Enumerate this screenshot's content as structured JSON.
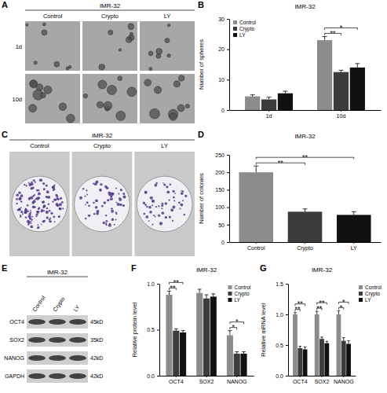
{
  "image_panels": [
    {
      "panel": "A",
      "title": "IMR-32",
      "columns": [
        "Control",
        "Crypto",
        "LY"
      ],
      "rows": [
        "1d",
        "10d"
      ]
    },
    {
      "panel": "C",
      "title": "IMR-32",
      "columns": [
        "Control",
        "Crypto",
        "LY"
      ]
    },
    {
      "panel": "E",
      "title": "IMR-32",
      "columns": [
        "Control",
        "Crypto",
        "LY"
      ],
      "rows": [
        "OCT4",
        "SOX2",
        "NANOG",
        "GAPDH"
      ],
      "row_sizes": [
        "45kD",
        "35kD",
        "42kD",
        "42kD"
      ]
    }
  ],
  "chart_data": [
    {
      "type": "bar",
      "panel": "B",
      "title": "IMR-32",
      "y_label": "Number of spheres",
      "categories": [
        "1d",
        "10d"
      ],
      "series": [
        {
          "name": "Control",
          "color": "#8c8c8c",
          "values": [
            4.5,
            23
          ],
          "errors": [
            0.5,
            1.2
          ]
        },
        {
          "name": "Crypto",
          "color": "#3c3c3c",
          "values": [
            3.5,
            12.5
          ],
          "errors": [
            0.7,
            0.6
          ]
        },
        {
          "name": "LY",
          "color": "#111111",
          "values": [
            5.5,
            14
          ],
          "errors": [
            0.7,
            1.3
          ]
        }
      ],
      "ylim": [
        0,
        30
      ],
      "yticks": [
        0,
        10,
        20,
        30
      ],
      "legend": "top-left",
      "annotations": [
        {
          "text": "**",
          "category": "10d",
          "between": [
            "Control",
            "Crypto"
          ]
        },
        {
          "text": "*",
          "category": "10d",
          "between": [
            "Control",
            "LY"
          ]
        }
      ]
    },
    {
      "type": "bar",
      "panel": "D",
      "title": "IMR-32",
      "y_label": "Number of colonies",
      "categories": [
        "Control",
        "Crypto",
        "LY"
      ],
      "values": [
        200,
        87,
        78
      ],
      "errors": [
        18,
        8,
        9
      ],
      "colors": [
        "#8c8c8c",
        "#3c3c3c",
        "#111111"
      ],
      "ylim": [
        0,
        250
      ],
      "yticks": [
        0,
        50,
        100,
        150,
        200,
        250
      ],
      "annotations": [
        {
          "text": "**",
          "between": [
            "Control",
            "Crypto"
          ]
        },
        {
          "text": "**",
          "between": [
            "Control",
            "LY"
          ]
        }
      ]
    },
    {
      "type": "bar",
      "panel": "F",
      "title": "IMR-32",
      "y_label": "Relative protein level",
      "categories": [
        "OCT4",
        "SOX2",
        "NANOG"
      ],
      "series": [
        {
          "name": "Control",
          "color": "#8c8c8c",
          "values": [
            0.88,
            0.9,
            0.44
          ],
          "errors": [
            0.04,
            0.04,
            0.05
          ]
        },
        {
          "name": "Crypto",
          "color": "#3c3c3c",
          "values": [
            0.49,
            0.84,
            0.24
          ],
          "errors": [
            0.02,
            0.04,
            0.02
          ]
        },
        {
          "name": "LY",
          "color": "#111111",
          "values": [
            0.47,
            0.86,
            0.24
          ],
          "errors": [
            0.02,
            0.03,
            0.02
          ]
        }
      ],
      "ylim": [
        0,
        1
      ],
      "yticks": [
        {
          "value": 0,
          "label": "0.0"
        },
        0.5,
        {
          "value": 1,
          "label": "1.0"
        }
      ],
      "legend": "top-right",
      "annotations": [
        {
          "text": "**",
          "category": "OCT4",
          "between": [
            "Control",
            "Crypto"
          ]
        },
        {
          "text": "**",
          "category": "OCT4",
          "between": [
            "Control",
            "LY"
          ]
        },
        {
          "text": "*",
          "category": "NANOG",
          "between": [
            "Control",
            "Crypto"
          ]
        },
        {
          "text": "*",
          "category": "NANOG",
          "between": [
            "Control",
            "LY"
          ]
        }
      ]
    },
    {
      "type": "bar",
      "panel": "G",
      "title": "IMR-32",
      "y_label": "Relative mRNA level",
      "categories": [
        "OCT4",
        "SOX2",
        "NANOG"
      ],
      "series": [
        {
          "name": "Control",
          "color": "#8c8c8c",
          "values": [
            1.0,
            1.0,
            1.0
          ],
          "errors": [
            0.03,
            0.05,
            0.06
          ]
        },
        {
          "name": "Crypto",
          "color": "#3c3c3c",
          "values": [
            0.45,
            0.6,
            0.57
          ],
          "errors": [
            0.03,
            0.03,
            0.05
          ]
        },
        {
          "name": "LY",
          "color": "#111111",
          "values": [
            0.43,
            0.53,
            0.52
          ],
          "errors": [
            0.04,
            0.03,
            0.05
          ]
        }
      ],
      "ylim": [
        0,
        1.5
      ],
      "yticks": [
        {
          "value": 0,
          "label": "0.0"
        },
        0.5,
        {
          "value": 1,
          "label": "1.0"
        },
        {
          "value": 1.5,
          "label": "1.5"
        }
      ],
      "legend": "right",
      "annotations": [
        {
          "text": "**",
          "category": "OCT4",
          "between": [
            "Control",
            "Crypto"
          ]
        },
        {
          "text": "**",
          "category": "OCT4",
          "between": [
            "Control",
            "LY"
          ]
        },
        {
          "text": "**",
          "category": "SOX2",
          "between": [
            "Control",
            "Crypto"
          ]
        },
        {
          "text": "**",
          "category": "SOX2",
          "between": [
            "Control",
            "LY"
          ]
        },
        {
          "text": "*",
          "category": "NANOG",
          "between": [
            "Control",
            "Crypto"
          ]
        },
        {
          "text": "*",
          "category": "NANOG",
          "between": [
            "Control",
            "LY"
          ]
        }
      ]
    }
  ]
}
